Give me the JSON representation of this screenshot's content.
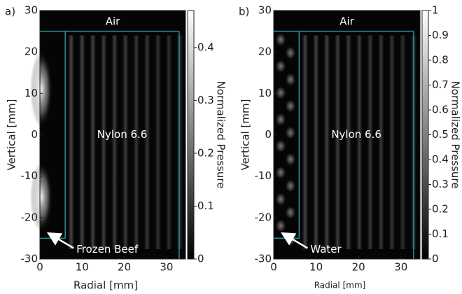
{
  "chart_data": [
    {
      "type": "heatmap",
      "panel_label": "a)",
      "xlabel": "Radial [mm]",
      "ylabel": "Vertical [mm]",
      "xlim": [
        0,
        34.5
      ],
      "ylim": [
        -30,
        30
      ],
      "xticks": [
        0,
        10,
        20,
        30
      ],
      "yticks": [
        30,
        20,
        10,
        0,
        -10,
        -20,
        -30
      ],
      "colorbar_label": "Normalized Pressure",
      "clim": [
        0,
        0.47
      ],
      "cticks": [
        0,
        0.1,
        0.2,
        0.3,
        0.4
      ],
      "boundaries": {
        "x": [
          6,
          33
        ],
        "y": [
          -25,
          25
        ]
      },
      "boundary_color": "#2a8fa0",
      "regions": [
        "Air",
        "Nylon 6.6"
      ],
      "annotation": "Frozen Beef"
    },
    {
      "type": "heatmap",
      "panel_label": "b)",
      "xlabel": "Radial [mm]",
      "ylabel": "Vertical [mm]",
      "xlim": [
        0,
        34.5
      ],
      "ylim": [
        -30,
        30
      ],
      "xticks": [
        0,
        10,
        20,
        30
      ],
      "yticks": [
        30,
        20,
        10,
        0,
        -10,
        -20,
        -30
      ],
      "colorbar_label": "Normalized Pressure",
      "clim": [
        0,
        1
      ],
      "cticks": [
        0,
        0.1,
        0.2,
        0.3,
        0.4,
        0.5,
        0.6,
        0.7,
        0.8,
        0.9,
        1
      ],
      "boundaries": {
        "x": [
          6,
          33
        ],
        "y": [
          -25,
          25
        ]
      },
      "boundary_color": "#2a8fa0",
      "regions": [
        "Air",
        "Nylon 6.6"
      ],
      "annotation": "Water"
    }
  ]
}
